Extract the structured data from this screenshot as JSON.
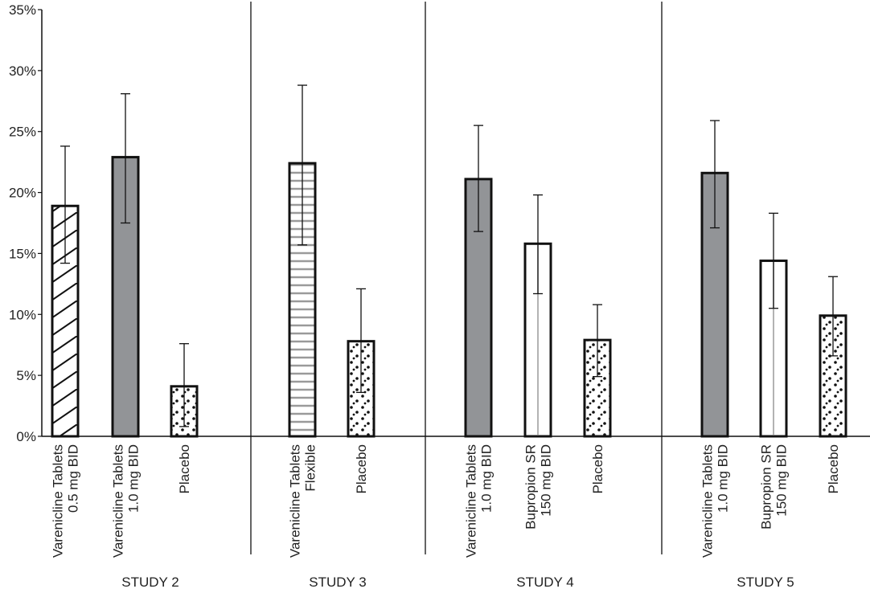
{
  "chart_data": {
    "type": "bar",
    "title": "",
    "xlabel": "",
    "ylabel": "",
    "ylim": [
      0,
      35
    ],
    "y_ticks": [
      "0%",
      "5%",
      "10%",
      "15%",
      "20%",
      "25%",
      "30%",
      "35%"
    ],
    "y_tick_values": [
      0,
      5,
      10,
      15,
      20,
      25,
      30,
      35
    ],
    "grid": false,
    "error_bars": true,
    "colors": {
      "varenicline_1mg": "#929497",
      "outline": "#111111",
      "stripe": "#9a9a9a"
    },
    "groups": [
      {
        "label": "STUDY 2",
        "bars": [
          {
            "label": [
              "Varenicline Tablets",
              "0.5 mg BID"
            ],
            "value": 18.9,
            "err_low": 14.2,
            "err_high": 23.8,
            "pattern": "diagonal-hatch"
          },
          {
            "label": [
              "Varenicline Tablets",
              "1.0 mg BID"
            ],
            "value": 22.9,
            "err_low": 17.5,
            "err_high": 28.1,
            "pattern": "solid-gray"
          },
          {
            "label": [
              "Placebo"
            ],
            "value": 4.1,
            "err_low": 0.8,
            "err_high": 7.6,
            "pattern": "dots"
          }
        ]
      },
      {
        "label": "STUDY 3",
        "bars": [
          {
            "label": [
              "Varenicline Tablets",
              "Flexible"
            ],
            "value": 22.4,
            "err_low": 15.7,
            "err_high": 28.8,
            "pattern": "horizontal-lines"
          },
          {
            "label": [
              "Placebo"
            ],
            "value": 7.8,
            "err_low": 3.6,
            "err_high": 12.1,
            "pattern": "dots"
          }
        ]
      },
      {
        "label": "STUDY 4",
        "bars": [
          {
            "label": [
              "Varenicline Tablets",
              "1.0 mg BID"
            ],
            "value": 21.1,
            "err_low": 16.8,
            "err_high": 25.5,
            "pattern": "solid-gray"
          },
          {
            "label": [
              "Bupropion SR",
              "150 mg BID"
            ],
            "value": 15.8,
            "err_low": 11.7,
            "err_high": 19.8,
            "pattern": "vertical-line"
          },
          {
            "label": [
              "Placebo"
            ],
            "value": 7.9,
            "err_low": 4.9,
            "err_high": 10.8,
            "pattern": "dots"
          }
        ]
      },
      {
        "label": "STUDY 5",
        "bars": [
          {
            "label": [
              "Varenicline Tablets",
              "1.0 mg BID"
            ],
            "value": 21.6,
            "err_low": 17.1,
            "err_high": 25.9,
            "pattern": "solid-gray"
          },
          {
            "label": [
              "Bupropion SR",
              "150 mg BID"
            ],
            "value": 14.4,
            "err_low": 10.5,
            "err_high": 18.3,
            "pattern": "vertical-line"
          },
          {
            "label": [
              "Placebo"
            ],
            "value": 9.9,
            "err_low": 6.6,
            "err_high": 13.1,
            "pattern": "dots"
          }
        ]
      }
    ]
  }
}
